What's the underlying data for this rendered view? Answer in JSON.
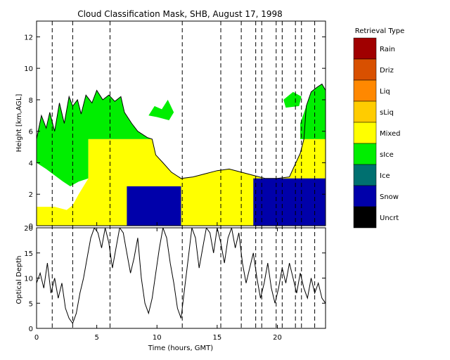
{
  "chart_data": [
    {
      "type": "area",
      "title": "Cloud Classification Mask, SHB, August 17, 1998",
      "ylabel": "Height [km,AGL]",
      "xlim": [
        0,
        24
      ],
      "ylim": [
        0,
        13
      ],
      "x_ticks": [
        0,
        5,
        10,
        15,
        20
      ],
      "y_ticks": [
        0,
        2,
        4,
        6,
        8,
        10,
        12
      ],
      "legend": {
        "title": "Retrieval Type",
        "placement": "right",
        "entries": [
          {
            "name": "Rain",
            "color": "#a00000"
          },
          {
            "name": "Driz",
            "color": "#d85000"
          },
          {
            "name": "Liq",
            "color": "#ff8800"
          },
          {
            "name": "sLiq",
            "color": "#ffcc00"
          },
          {
            "name": "Mixed",
            "color": "#ffff00"
          },
          {
            "name": "sIce",
            "color": "#00ee00"
          },
          {
            "name": "Ice",
            "color": "#007070"
          },
          {
            "name": "Snow",
            "color": "#0000aa"
          },
          {
            "name": "Uncrt",
            "color": "#000000"
          }
        ]
      },
      "regions": [
        {
          "class": "sIce",
          "polygon": [
            [
              0,
              5.5
            ],
            [
              0.4,
              7.0
            ],
            [
              0.8,
              6.2
            ],
            [
              1.1,
              7.2
            ],
            [
              1.5,
              6.0
            ],
            [
              1.9,
              7.8
            ],
            [
              2.3,
              6.5
            ],
            [
              2.7,
              8.2
            ],
            [
              3.0,
              7.6
            ],
            [
              3.4,
              8.0
            ],
            [
              3.7,
              7.1
            ],
            [
              4.1,
              8.3
            ],
            [
              4.6,
              7.8
            ],
            [
              5.0,
              8.6
            ],
            [
              5.5,
              8.0
            ],
            [
              6.0,
              8.3
            ],
            [
              6.5,
              7.9
            ],
            [
              7.0,
              8.2
            ],
            [
              7.3,
              7.2
            ],
            [
              7.9,
              6.5
            ],
            [
              8.4,
              6.0
            ],
            [
              9.2,
              5.6
            ],
            [
              9.6,
              5.5
            ],
            [
              4.3,
              5.5
            ],
            [
              4.3,
              3.0
            ],
            [
              3.5,
              2.8
            ],
            [
              2.8,
              2.5
            ],
            [
              2.2,
              2.8
            ],
            [
              1.5,
              3.2
            ],
            [
              0.8,
              3.6
            ],
            [
              0,
              4.0
            ]
          ]
        },
        {
          "class": "sIce",
          "polygon": [
            [
              9.3,
              7.0
            ],
            [
              9.8,
              7.6
            ],
            [
              10.4,
              7.4
            ],
            [
              10.9,
              8.0
            ],
            [
              11.4,
              7.2
            ],
            [
              11.0,
              6.7
            ],
            [
              10.0,
              6.9
            ]
          ]
        },
        {
          "class": "sIce",
          "polygon": [
            [
              20.5,
              8.0
            ],
            [
              21.3,
              8.5
            ],
            [
              22.0,
              8.2
            ],
            [
              21.8,
              7.6
            ],
            [
              20.7,
              7.5
            ]
          ]
        },
        {
          "class": "sIce",
          "polygon": [
            [
              21.9,
              5.5
            ],
            [
              21.9,
              6.5
            ],
            [
              22.4,
              7.6
            ],
            [
              22.8,
              8.5
            ],
            [
              23.3,
              8.8
            ],
            [
              23.7,
              9.0
            ],
            [
              24,
              8.6
            ],
            [
              24,
              5.5
            ]
          ]
        },
        {
          "class": "Mixed",
          "polygon": [
            [
              4.3,
              5.5
            ],
            [
              9.6,
              5.5
            ],
            [
              9.9,
              4.5
            ],
            [
              10.5,
              4.0
            ],
            [
              11.2,
              3.4
            ],
            [
              12.0,
              3.0
            ],
            [
              13.0,
              3.1
            ],
            [
              14.0,
              3.3
            ],
            [
              15.0,
              3.5
            ],
            [
              16.0,
              3.6
            ],
            [
              17.0,
              3.4
            ],
            [
              18.0,
              3.2
            ],
            [
              19.0,
              3.0
            ],
            [
              20.0,
              3.0
            ],
            [
              21.0,
              3.1
            ],
            [
              21.9,
              4.6
            ],
            [
              22.2,
              5.5
            ],
            [
              24,
              5.5
            ],
            [
              24,
              0
            ],
            [
              0,
              0
            ],
            [
              0,
              1.2
            ],
            [
              1.5,
              1.2
            ],
            [
              2.5,
              1.0
            ],
            [
              3.0,
              1.3
            ],
            [
              3.5,
              2.0
            ],
            [
              4.3,
              3.0
            ]
          ]
        },
        {
          "class": "Snow",
          "polygon": [
            [
              7.5,
              0
            ],
            [
              7.5,
              2.5
            ],
            [
              12,
              2.5
            ],
            [
              12,
              0
            ]
          ]
        },
        {
          "class": "Snow",
          "polygon": [
            [
              18,
              0
            ],
            [
              18,
              3
            ],
            [
              24,
              3
            ],
            [
              24,
              0
            ]
          ]
        }
      ],
      "cloud_top_outline": [
        [
          0,
          5.5
        ],
        [
          0.4,
          7.0
        ],
        [
          0.8,
          6.2
        ],
        [
          1.1,
          7.2
        ],
        [
          1.5,
          6.0
        ],
        [
          1.9,
          7.8
        ],
        [
          2.3,
          6.5
        ],
        [
          2.7,
          8.2
        ],
        [
          3.0,
          7.6
        ],
        [
          3.4,
          8.0
        ],
        [
          3.7,
          7.1
        ],
        [
          4.1,
          8.3
        ],
        [
          4.6,
          7.8
        ],
        [
          5.0,
          8.6
        ],
        [
          5.5,
          8.0
        ],
        [
          6.0,
          8.3
        ],
        [
          6.5,
          7.9
        ],
        [
          7.0,
          8.2
        ],
        [
          7.3,
          7.2
        ],
        [
          7.9,
          6.5
        ],
        [
          8.4,
          6.0
        ],
        [
          9.2,
          5.6
        ],
        [
          9.6,
          5.5
        ],
        [
          9.9,
          4.5
        ],
        [
          10.5,
          4.0
        ],
        [
          11.2,
          3.4
        ],
        [
          12.0,
          3.0
        ],
        [
          13.0,
          3.1
        ],
        [
          14.0,
          3.3
        ],
        [
          15.0,
          3.5
        ],
        [
          16.0,
          3.6
        ],
        [
          17.0,
          3.4
        ],
        [
          18.0,
          3.2
        ],
        [
          19.0,
          3.0
        ],
        [
          20.0,
          3.0
        ],
        [
          21.0,
          3.1
        ],
        [
          21.9,
          4.6
        ],
        [
          22.2,
          5.5
        ],
        [
          22.4,
          7.6
        ],
        [
          22.8,
          8.5
        ],
        [
          23.3,
          8.8
        ],
        [
          23.7,
          9.0
        ],
        [
          24,
          8.6
        ]
      ],
      "vertical_lines": [
        1.3,
        3.0,
        6.1,
        12.1,
        15.3,
        17.0,
        18.2,
        18.7,
        19.9,
        20.4,
        21.5,
        22.0,
        23.1
      ]
    },
    {
      "type": "line",
      "xlabel": "Time (hours, GMT)",
      "ylabel": "Optical Depth",
      "xlim": [
        0,
        24
      ],
      "ylim": [
        0,
        20
      ],
      "x_ticks": [
        0,
        5,
        10,
        15,
        20
      ],
      "y_ticks": [
        0,
        5,
        10,
        15,
        20
      ],
      "series": [
        {
          "x": [
            0,
            0.3,
            0.6,
            0.9,
            1.2,
            1.5,
            1.8,
            2.1,
            2.4,
            2.7,
            3.0,
            3.3,
            3.6,
            3.9,
            4.2,
            4.5,
            4.8,
            5.1,
            5.4,
            5.7,
            6.0,
            6.3,
            6.6,
            6.9,
            7.2,
            7.5,
            7.8,
            8.1,
            8.4,
            8.7,
            9.0,
            9.3,
            9.6,
            9.9,
            10.2,
            10.5,
            10.8,
            11.1,
            11.4,
            11.7,
            12.0,
            12.3,
            12.6,
            12.9,
            13.2,
            13.5,
            13.8,
            14.1,
            14.4,
            14.7,
            15.0,
            15.3,
            15.6,
            15.9,
            16.2,
            16.5,
            16.8,
            17.1,
            17.4,
            17.7,
            18.0,
            18.3,
            18.6,
            18.9,
            19.2,
            19.5,
            19.8,
            20.1,
            20.4,
            20.7,
            21.0,
            21.3,
            21.6,
            21.9,
            22.2,
            22.5,
            22.8,
            23.1,
            23.4,
            23.7,
            24.0
          ],
          "values": [
            9,
            11,
            8,
            13,
            7,
            10,
            6,
            9,
            4,
            2,
            1,
            3,
            7,
            10,
            14,
            18,
            20,
            19,
            16,
            20,
            17,
            12,
            16,
            20,
            19,
            15,
            11,
            14,
            18,
            10,
            5,
            3,
            6,
            11,
            16,
            20,
            18,
            13,
            9,
            4,
            2,
            8,
            14,
            20,
            18,
            12,
            16,
            20,
            19,
            15,
            20,
            17,
            13,
            18,
            20,
            16,
            19,
            13,
            9,
            12,
            15,
            10,
            6,
            9,
            13,
            8,
            5,
            8,
            12,
            9,
            13,
            10,
            7,
            11,
            8,
            6,
            10,
            7,
            9,
            6,
            5
          ]
        }
      ]
    }
  ]
}
